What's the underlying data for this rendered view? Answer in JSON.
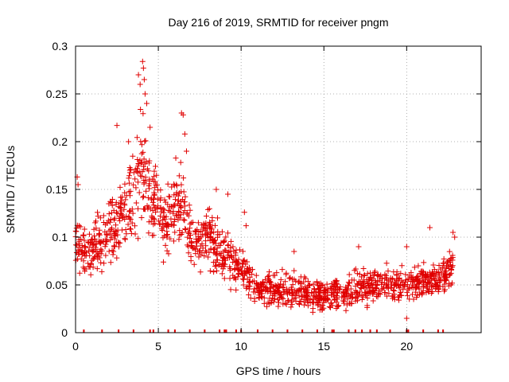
{
  "chart_data": {
    "type": "scatter",
    "title": "Day 216 of 2019, SRMTID for receiver pngm",
    "xlabel": "GPS time / hours",
    "ylabel": "SRMTID / TECUs",
    "xlim": [
      0,
      24.5
    ],
    "ylim": [
      0,
      0.3
    ],
    "xticks": [
      0,
      5,
      10,
      15,
      20
    ],
    "yticks": [
      0,
      0.05,
      0.1,
      0.15,
      0.2,
      0.25,
      0.3
    ],
    "xtick_labels": [
      "0",
      "5",
      "10",
      "15",
      "20"
    ],
    "ytick_labels": [
      "0",
      "0.05",
      "0.1",
      "0.15",
      "0.2",
      "0.25",
      "0.3"
    ],
    "grid": true,
    "marker": "+",
    "series_color": "#e00000",
    "envelope": [
      {
        "x": 0.0,
        "center": 0.095,
        "spread": 0.04
      },
      {
        "x": 0.5,
        "center": 0.085,
        "spread": 0.035
      },
      {
        "x": 1.0,
        "center": 0.085,
        "spread": 0.035
      },
      {
        "x": 1.5,
        "center": 0.095,
        "spread": 0.04
      },
      {
        "x": 2.0,
        "center": 0.105,
        "spread": 0.045
      },
      {
        "x": 2.5,
        "center": 0.115,
        "spread": 0.05
      },
      {
        "x": 3.0,
        "center": 0.125,
        "spread": 0.055
      },
      {
        "x": 3.5,
        "center": 0.15,
        "spread": 0.065
      },
      {
        "x": 4.0,
        "center": 0.17,
        "spread": 0.08
      },
      {
        "x": 4.5,
        "center": 0.15,
        "spread": 0.06
      },
      {
        "x": 5.0,
        "center": 0.125,
        "spread": 0.05
      },
      {
        "x": 5.5,
        "center": 0.115,
        "spread": 0.05
      },
      {
        "x": 6.0,
        "center": 0.14,
        "spread": 0.06
      },
      {
        "x": 6.5,
        "center": 0.13,
        "spread": 0.055
      },
      {
        "x": 7.0,
        "center": 0.1,
        "spread": 0.045
      },
      {
        "x": 7.5,
        "center": 0.095,
        "spread": 0.04
      },
      {
        "x": 8.0,
        "center": 0.1,
        "spread": 0.04
      },
      {
        "x": 8.5,
        "center": 0.09,
        "spread": 0.04
      },
      {
        "x": 9.0,
        "center": 0.085,
        "spread": 0.04
      },
      {
        "x": 9.5,
        "center": 0.075,
        "spread": 0.035
      },
      {
        "x": 10.0,
        "center": 0.065,
        "spread": 0.03
      },
      {
        "x": 10.5,
        "center": 0.055,
        "spread": 0.03
      },
      {
        "x": 11.0,
        "center": 0.045,
        "spread": 0.025
      },
      {
        "x": 12.0,
        "center": 0.045,
        "spread": 0.025
      },
      {
        "x": 13.0,
        "center": 0.045,
        "spread": 0.025
      },
      {
        "x": 14.0,
        "center": 0.042,
        "spread": 0.025
      },
      {
        "x": 15.0,
        "center": 0.038,
        "spread": 0.022
      },
      {
        "x": 16.0,
        "center": 0.04,
        "spread": 0.022
      },
      {
        "x": 17.0,
        "center": 0.045,
        "spread": 0.025
      },
      {
        "x": 18.0,
        "center": 0.05,
        "spread": 0.025
      },
      {
        "x": 19.0,
        "center": 0.05,
        "spread": 0.025
      },
      {
        "x": 20.0,
        "center": 0.05,
        "spread": 0.025
      },
      {
        "x": 21.0,
        "center": 0.055,
        "spread": 0.025
      },
      {
        "x": 22.0,
        "center": 0.055,
        "spread": 0.025
      },
      {
        "x": 22.8,
        "center": 0.07,
        "spread": 0.03
      }
    ],
    "highlights": [
      {
        "x": 0.1,
        "y": 0.163
      },
      {
        "x": 0.15,
        "y": 0.155
      },
      {
        "x": 2.5,
        "y": 0.217
      },
      {
        "x": 3.2,
        "y": 0.2
      },
      {
        "x": 3.8,
        "y": 0.27
      },
      {
        "x": 3.9,
        "y": 0.26
      },
      {
        "x": 4.05,
        "y": 0.284
      },
      {
        "x": 4.1,
        "y": 0.277
      },
      {
        "x": 4.15,
        "y": 0.265
      },
      {
        "x": 4.2,
        "y": 0.25
      },
      {
        "x": 4.3,
        "y": 0.24
      },
      {
        "x": 4.5,
        "y": 0.215
      },
      {
        "x": 6.4,
        "y": 0.23
      },
      {
        "x": 6.5,
        "y": 0.228
      },
      {
        "x": 6.6,
        "y": 0.208
      },
      {
        "x": 6.7,
        "y": 0.19
      },
      {
        "x": 8.5,
        "y": 0.15
      },
      {
        "x": 9.2,
        "y": 0.145
      },
      {
        "x": 10.2,
        "y": 0.126
      },
      {
        "x": 10.3,
        "y": 0.112
      },
      {
        "x": 13.2,
        "y": 0.085
      },
      {
        "x": 17.1,
        "y": 0.09
      },
      {
        "x": 20.0,
        "y": 0.09
      },
      {
        "x": 20.0,
        "y": 0.015
      },
      {
        "x": 21.4,
        "y": 0.11
      },
      {
        "x": 22.8,
        "y": 0.105
      },
      {
        "x": 22.9,
        "y": 0.1
      }
    ],
    "zero_markers_x": [
      0.5,
      1.6,
      2.6,
      3.5,
      4.5,
      4.7,
      5.6,
      6.0,
      6.9,
      7.8,
      8.7,
      9.0,
      9.1,
      9.7,
      10.0,
      11.0,
      11.9,
      12.8,
      13.7,
      14.6,
      15.5,
      15.6,
      16.5,
      16.9,
      17.3,
      17.8,
      18.2,
      19.0,
      20.0,
      20.1,
      21.0,
      21.9,
      22.2
    ]
  }
}
